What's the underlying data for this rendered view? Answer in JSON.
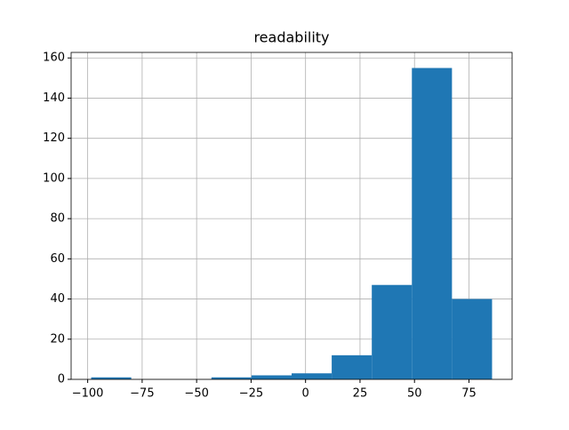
{
  "chart_data": {
    "type": "histogram",
    "title": "readability",
    "bins": [
      -98.4,
      -80,
      -61.6,
      -43.2,
      -24.8,
      -6.4,
      12,
      30.4,
      48.8,
      67.2,
      85.6
    ],
    "counts": [
      1,
      0,
      0,
      1,
      2,
      3,
      12,
      47,
      155,
      40
    ],
    "color": "#1f77b4",
    "xlim": [
      -107.6,
      94.8
    ],
    "xticks": [
      {
        "value": -100,
        "label": "−100"
      },
      {
        "value": -75,
        "label": "−75"
      },
      {
        "value": -50,
        "label": "−50"
      },
      {
        "value": -25,
        "label": "−25"
      },
      0,
      25,
      50,
      75
    ],
    "ylim": [
      0,
      162.75
    ],
    "yticks": [
      0,
      20,
      40,
      60,
      80,
      100,
      120,
      140,
      160
    ],
    "grid": true
  }
}
